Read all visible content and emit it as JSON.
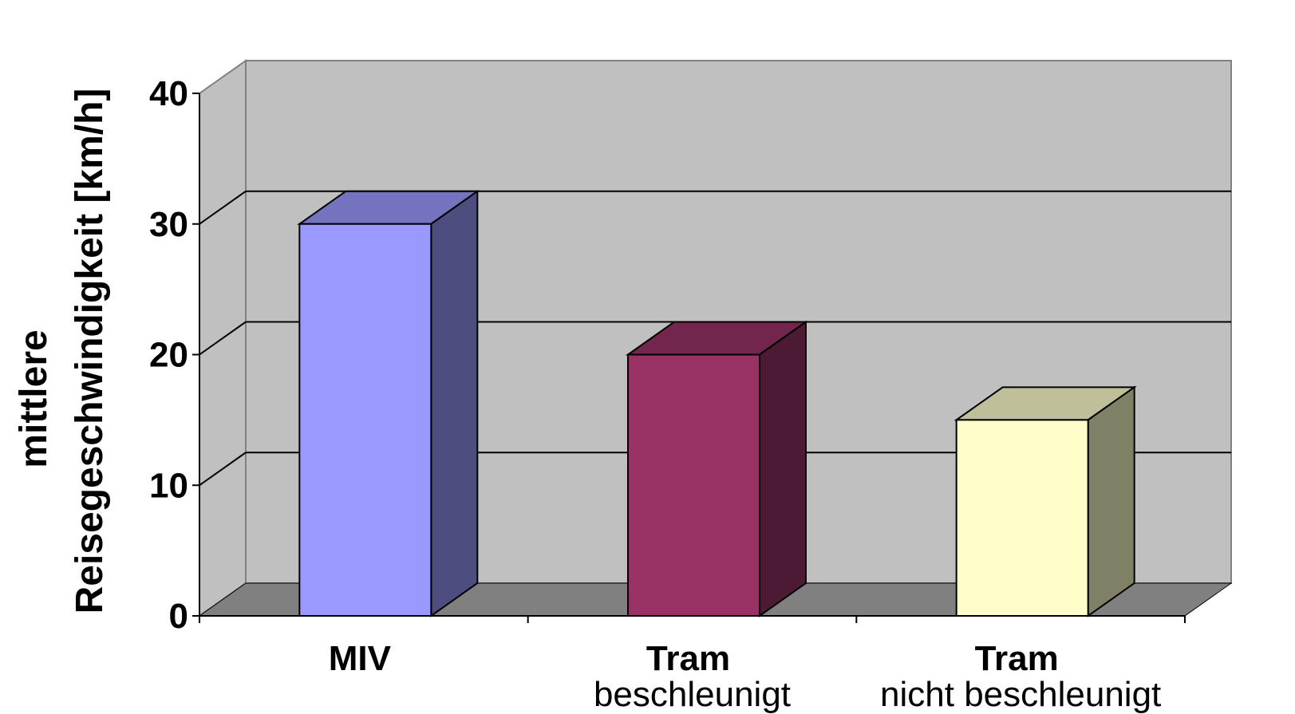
{
  "chart_data": {
    "type": "bar",
    "style": "3d-column",
    "categories": [
      {
        "line1": "MIV",
        "line2": ""
      },
      {
        "line1": "Tram",
        "line2": "beschleunigt"
      },
      {
        "line1": "Tram",
        "line2": "nicht beschleunigt"
      }
    ],
    "values": [
      30,
      20,
      15
    ],
    "ylabel_line1": "mittlere",
    "ylabel_line2": "Reisegeschwindigkeit [km/h]",
    "ylim": [
      0,
      40
    ],
    "yticks": [
      "0",
      "10",
      "20",
      "30",
      "40"
    ],
    "grid": true,
    "colors": {
      "wall": "#c0c0c0",
      "floor": "#808080",
      "bars": [
        {
          "front": "#9999ff",
          "top": "#7373bf",
          "side": "#4d4d80"
        },
        {
          "front": "#993366",
          "top": "#73264d",
          "side": "#4d1a33"
        },
        {
          "front": "#ffffcc",
          "top": "#bfbf99",
          "side": "#808066"
        }
      ]
    }
  }
}
